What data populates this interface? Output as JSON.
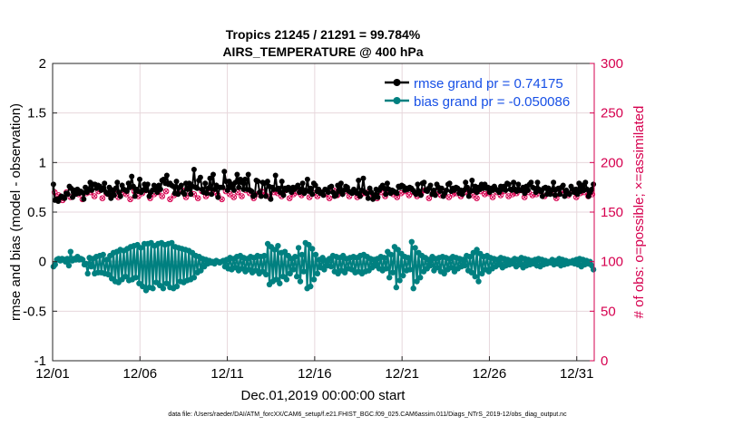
{
  "chart_data": {
    "type": "line",
    "title": "Tropics 21245 / 21291 = 99.784%",
    "subtitle": "AIRS_TEMPERATURE @ 400 hPa",
    "xlabel": "Dec.01,2019 00:00:00 start",
    "ylabel": "rmse and bias (model - observation)",
    "y2label": "# of obs: o=possible; ×=assimilated",
    "xlim": [
      0,
      31
    ],
    "ylim": [
      -1,
      2
    ],
    "y2lim": [
      0,
      300
    ],
    "x_ticks": [
      0,
      5,
      10,
      15,
      20,
      25,
      30
    ],
    "x_tick_labels": [
      "12/01",
      "12/06",
      "12/11",
      "12/16",
      "12/21",
      "12/26",
      "12/31"
    ],
    "y_ticks": [
      -1,
      -0.5,
      0,
      0.5,
      1,
      1.5,
      2
    ],
    "y_tick_labels": [
      "-1",
      "-0.5",
      "0",
      "0.5",
      "1",
      "1.5",
      "2"
    ],
    "y2_ticks": [
      0,
      50,
      100,
      150,
      200,
      250,
      300
    ],
    "y2_tick_labels": [
      "0",
      "50",
      "100",
      "150",
      "200",
      "250",
      "300"
    ],
    "legend_placement": "top-right",
    "footnote": "data file: /Users/raeder/DAI/ATM_forcXX/CAM6_setup/f.e21.FHIST_BGC.f09_025.CAM6assim.011/Diags_NTrS_2019-12/obs_diag_output.nc",
    "colors": {
      "rmse": "#000000",
      "bias": "#008080",
      "obs": "#d6004f",
      "grid": "#e7d7dc",
      "zero": "#c8c8c8"
    },
    "series": [
      {
        "name": "rmse grand pr = 0.74175",
        "values": [
          0.78,
          0.62,
          0.63,
          0.61,
          0.64,
          0.66,
          0.65,
          0.64,
          0.69,
          0.68,
          0.76,
          0.74,
          0.65,
          0.72,
          0.68,
          0.73,
          0.69,
          0.71,
          0.7,
          0.63,
          0.75,
          0.7,
          0.73,
          0.8,
          0.72,
          0.78,
          0.78,
          0.74,
          0.77,
          0.76,
          0.72,
          0.74,
          0.79,
          0.7,
          0.68,
          0.75,
          0.64,
          0.72,
          0.67,
          0.74,
          0.8,
          0.7,
          0.66,
          0.77,
          0.73,
          0.72,
          0.71,
          0.79,
          0.75,
          0.86,
          0.76,
          0.66,
          0.73,
          0.71,
          0.83,
          0.7,
          0.72,
          0.78,
          0.72,
          0.78,
          0.66,
          0.7,
          0.72,
          0.77,
          0.74,
          0.7,
          0.77,
          0.73,
          0.82,
          0.83,
          0.79,
          0.87,
          0.78,
          0.79,
          0.77,
          0.76,
          0.69,
          0.81,
          0.68,
          0.75,
          0.77,
          0.7,
          0.68,
          0.79,
          0.73,
          0.79,
          0.68,
          0.76,
          0.93,
          0.75,
          0.74,
          0.82,
          0.85,
          0.73,
          0.7,
          0.79,
          0.69,
          0.74,
          0.84,
          0.68,
          0.88,
          0.73,
          0.77,
          0.65,
          0.75,
          0.75,
          0.75,
          0.91,
          0.81,
          0.72,
          0.81,
          0.75,
          0.78,
          0.72,
          0.8,
          0.88,
          0.75,
          0.83,
          0.8,
          0.73,
          0.83,
          0.73,
          0.88,
          0.72,
          0.71,
          0.66,
          0.67,
          0.82,
          0.81,
          0.7,
          0.66,
          0.8,
          0.79,
          0.66,
          0.81,
          0.76,
          0.63,
          0.75,
          0.73,
          0.87,
          0.73,
          0.74,
          0.7,
          0.81,
          0.67,
          0.74,
          0.72,
          0.75,
          0.73,
          0.7,
          0.75,
          0.73,
          0.75,
          0.77,
          0.7,
          0.73,
          0.79,
          0.69,
          0.72,
          0.83,
          0.71,
          0.74,
          0.68,
          0.79,
          0.77,
          0.71,
          0.73,
          0.69,
          0.7,
          0.67,
          0.73,
          0.72,
          0.7,
          0.75,
          0.76,
          0.7,
          0.66,
          0.67,
          0.77,
          0.71,
          0.79,
          0.68,
          0.72,
          0.76,
          0.75,
          0.71,
          0.7,
          0.69,
          0.73,
          0.71,
          0.69,
          0.82,
          0.66,
          0.72,
          0.84,
          0.7,
          0.69,
          0.64,
          0.74,
          0.7,
          0.63,
          0.67,
          0.73,
          0.65,
          0.72,
          0.75,
          0.77,
          0.74,
          0.68,
          0.79,
          0.73,
          0.69,
          0.72,
          0.71,
          0.7,
          0.69,
          0.76,
          0.75,
          0.77,
          0.76,
          0.72,
          0.74,
          0.73,
          0.75,
          0.74,
          0.72,
          0.7,
          0.68,
          0.78,
          0.71,
          0.67,
          0.79,
          0.8,
          0.72,
          0.71,
          0.74,
          0.77,
          0.68,
          0.72,
          0.67,
          0.78,
          0.75,
          0.71,
          0.74,
          0.66,
          0.69,
          0.72,
          0.78,
          0.79,
          0.71,
          0.74,
          0.72,
          0.75,
          0.74,
          0.69,
          0.72,
          0.68,
          0.72,
          0.8,
          0.75,
          0.66,
          0.71,
          0.82,
          0.72,
          0.76,
          0.7,
          0.75,
          0.73,
          0.78,
          0.74,
          0.78,
          0.74,
          0.75,
          0.7,
          0.74,
          0.72,
          0.76,
          0.73,
          0.72,
          0.7,
          0.76,
          0.73,
          0.76,
          0.72,
          0.79,
          0.78,
          0.73,
          0.72,
          0.8,
          0.73,
          0.71,
          0.78,
          0.72,
          0.72,
          0.75,
          0.69,
          0.76,
          0.72,
          0.78,
          0.8,
          0.75,
          0.74,
          0.7,
          0.8,
          0.73,
          0.71,
          0.66,
          0.74,
          0.75,
          0.68,
          0.74,
          0.68,
          0.72,
          0.8,
          0.67,
          0.73,
          0.74,
          0.68,
          0.75,
          0.77,
          0.66,
          0.72,
          0.69,
          0.68,
          0.76,
          0.73,
          0.7,
          0.73,
          0.68,
          0.79,
          0.71,
          0.77,
          0.72,
          0.8,
          0.73,
          0.66,
          0.7,
          0.73,
          0.78
        ]
      },
      {
        "name": "bias grand pr = -0.050086",
        "values": [
          -0.05,
          -0.03,
          0.02,
          0.03,
          0.01,
          0.03,
          0.02,
          0.0,
          0.03,
          -0.04,
          0.1,
          0.01,
          0.03,
          0.02,
          0.05,
          0.02,
          0.03,
          0.02,
          -0.03,
          -0.02,
          -0.12,
          0.04,
          -0.05,
          0.03,
          -0.12,
          0.05,
          -0.11,
          0.06,
          -0.11,
          0.07,
          -0.12,
          0.02,
          -0.13,
          0.06,
          -0.17,
          0.09,
          -0.2,
          0.1,
          -0.21,
          0.12,
          -0.18,
          0.11,
          -0.15,
          0.13,
          -0.19,
          0.15,
          -0.18,
          0.16,
          -0.16,
          0.17,
          -0.22,
          0.14,
          -0.25,
          0.18,
          -0.29,
          0.18,
          -0.26,
          0.19,
          -0.27,
          0.16,
          -0.21,
          0.18,
          -0.24,
          0.19,
          -0.27,
          0.17,
          -0.22,
          0.18,
          -0.26,
          0.19,
          -0.27,
          0.15,
          -0.25,
          0.14,
          -0.2,
          0.13,
          -0.21,
          0.12,
          -0.19,
          0.11,
          -0.18,
          0.09,
          -0.16,
          0.06,
          -0.11,
          0.05,
          -0.09,
          0.03,
          -0.05,
          0.02,
          -0.02,
          0.01,
          -0.01,
          0.0,
          -0.02,
          0.01,
          0.0,
          -0.01,
          0.0,
          0.01,
          -0.05,
          0.02,
          -0.07,
          0.04,
          -0.08,
          0.03,
          -0.06,
          0.05,
          -0.09,
          0.06,
          -0.07,
          0.04,
          -0.1,
          0.03,
          -0.08,
          0.05,
          -0.11,
          0.04,
          -0.09,
          0.06,
          -0.12,
          0.05,
          -0.1,
          0.06,
          -0.13,
          0.18,
          -0.23,
          0.15,
          -0.2,
          0.12,
          -0.18,
          0.16,
          -0.22,
          0.09,
          -0.15,
          0.1,
          -0.18,
          0.06,
          -0.12,
          0.03,
          -0.08,
          0.05,
          -0.15,
          0.14,
          -0.2,
          0.07,
          -0.1,
          0.19,
          -0.27,
          0.17,
          -0.25,
          0.13,
          -0.18,
          0.07,
          -0.12,
          0.02,
          -0.06,
          0.04,
          -0.08,
          0.01,
          -0.04,
          0.03,
          -0.05,
          0.06,
          -0.1,
          0.05,
          -0.12,
          0.04,
          -0.09,
          0.06,
          -0.11,
          0.03,
          -0.07,
          0.04,
          -0.08,
          0.05,
          -0.11,
          0.04,
          -0.1,
          0.06,
          -0.12,
          0.07,
          -0.1,
          0.05,
          -0.09,
          0.03,
          -0.06,
          0.02,
          -0.04,
          0.03,
          -0.07,
          0.05,
          -0.09,
          0.04,
          -0.07,
          0.1,
          -0.16,
          0.07,
          -0.11,
          0.15,
          -0.26,
          0.12,
          -0.19,
          0.08,
          -0.14,
          0.05,
          -0.09,
          0.04,
          -0.08,
          0.2,
          -0.27,
          0.14,
          -0.2,
          0.09,
          -0.16,
          0.06,
          -0.1,
          0.04,
          -0.07,
          0.02,
          -0.04,
          0.05,
          -0.09,
          0.03,
          -0.06,
          0.04,
          -0.1,
          0.05,
          -0.12,
          0.04,
          -0.08,
          0.03,
          -0.06,
          0.05,
          -0.1,
          0.04,
          -0.07,
          0.03,
          -0.05,
          0.02,
          -0.04,
          0.06,
          -0.09,
          0.05,
          -0.11,
          0.09,
          -0.15,
          0.12,
          -0.2,
          0.08,
          -0.12,
          0.05,
          -0.08,
          0.06,
          -0.1,
          0.04,
          -0.07,
          0.03,
          -0.05,
          0.02,
          -0.03,
          0.04,
          -0.06,
          0.03,
          -0.04,
          0.02,
          -0.03,
          0.01,
          -0.02,
          0.03,
          -0.05,
          0.02,
          -0.03,
          0.04,
          -0.06,
          0.03,
          -0.04,
          0.02,
          -0.03,
          0.01,
          -0.02,
          0.02,
          -0.04,
          0.03,
          -0.05,
          0.02,
          -0.03,
          0.01,
          -0.02,
          0.0,
          -0.01,
          0.02,
          -0.03,
          0.01,
          -0.02,
          0.03,
          -0.04,
          0.02,
          -0.03,
          0.01,
          -0.02,
          0.0,
          -0.01,
          0.01,
          -0.02,
          0.02,
          -0.03,
          0.03,
          -0.05,
          0.02,
          -0.03,
          0.01,
          -0.02,
          0.0,
          -0.04,
          -0.08
        ]
      }
    ],
    "obs_possible": [
      170,
      167,
      162,
      170,
      165,
      171,
      168,
      163,
      169,
      170,
      166,
      171,
      164,
      169,
      167,
      172,
      165,
      170,
      168,
      163,
      171,
      166,
      169,
      172,
      164,
      168,
      170,
      166,
      171,
      163,
      167,
      169,
      172,
      165,
      170,
      168,
      164,
      171,
      166,
      169,
      170,
      167,
      163,
      171,
      168,
      165,
      170,
      166,
      172,
      169,
      164,
      168,
      171,
      167,
      165,
      170,
      169,
      166,
      172,
      164,
      168,
      170,
      167,
      171,
      165,
      169,
      166,
      170,
      168,
      164,
      172,
      167,
      169,
      171,
      166,
      170,
      165,
      168,
      169,
      171,
      167,
      164,
      170,
      166,
      172,
      168,
      165,
      169,
      171,
      167,
      170,
      166,
      168,
      172,
      164,
      169,
      170,
      167,
      171,
      165,
      168,
      169,
      166,
      170,
      172,
      167,
      164,
      171,
      168,
      169,
      165,
      170,
      167,
      171,
      166,
      168,
      169,
      172,
      165,
      170,
      167,
      168,
      171,
      166,
      169,
      170,
      164,
      172,
      168,
      167,
      171,
      165,
      169,
      170,
      166,
      168
    ],
    "obs_assimilated": [
      170,
      167,
      162,
      170,
      165,
      171,
      168,
      163,
      169,
      170,
      166,
      171,
      164,
      169,
      167,
      172,
      165,
      170,
      168,
      163,
      171,
      166,
      169,
      172,
      164,
      168,
      170,
      166,
      171,
      163,
      167,
      169,
      172,
      165,
      170,
      168,
      164,
      171,
      166,
      169,
      170,
      167,
      163,
      171,
      168,
      165,
      170,
      166,
      172,
      169,
      164,
      168,
      171,
      167,
      165,
      170,
      169,
      166,
      172,
      164,
      168,
      170,
      167,
      171,
      165,
      169,
      166,
      170,
      168,
      164,
      172,
      167,
      169,
      171,
      166,
      170,
      165,
      168,
      169,
      171,
      167,
      164,
      170,
      166,
      172,
      168,
      165,
      169,
      171,
      167,
      170,
      166,
      168,
      172,
      164,
      169,
      170,
      167,
      171,
      165,
      168,
      169,
      166,
      170,
      172,
      167,
      164,
      171,
      168,
      169,
      165,
      170,
      167,
      171,
      166,
      168,
      169,
      172,
      165,
      170,
      167,
      168,
      171,
      166,
      169,
      170,
      164,
      172,
      168,
      167,
      171,
      165,
      169,
      170,
      166,
      168
    ]
  }
}
